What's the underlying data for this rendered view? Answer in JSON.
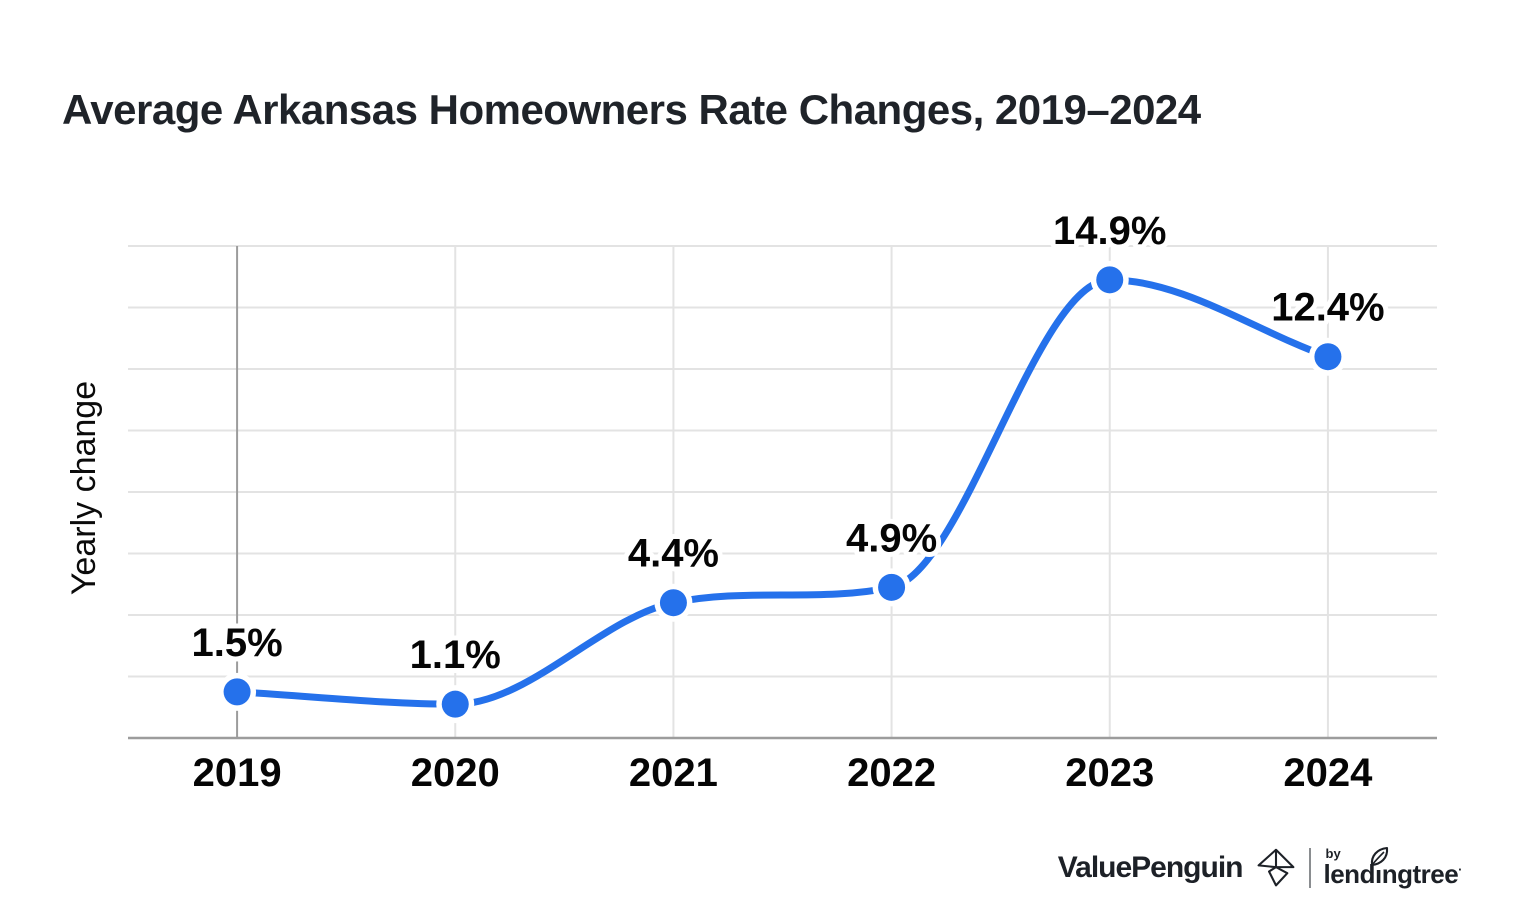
{
  "title": "Average Arkansas Homeowners Rate Changes, 2019–2024",
  "chart_data": {
    "type": "line",
    "title": "Average Arkansas Homeowners Rate Changes, 2019–2024",
    "xlabel": "",
    "ylabel": "Yearly change",
    "categories": [
      "2019",
      "2020",
      "2021",
      "2022",
      "2023",
      "2024"
    ],
    "values": [
      1.5,
      1.1,
      4.4,
      4.9,
      14.9,
      12.4
    ],
    "point_labels": [
      "1.5%",
      "1.1%",
      "4.4%",
      "4.9%",
      "14.9%",
      "12.4%"
    ],
    "ylim": [
      0,
      16
    ],
    "grid_step": 2,
    "grid": true,
    "legend_position": "none",
    "curve": "monotone",
    "colors": {
      "line": "#2571EB",
      "marker": "#2571EB",
      "marker_halo": "#FFFFFF",
      "gridline": "#E3E3E3",
      "axis": "#9C9C9C",
      "data_label": "#050505",
      "tick_label": "#050505",
      "axis_title": "#0B0B0B"
    }
  },
  "footer": {
    "brand_left": "ValuePenguin",
    "brand_by": "by",
    "brand_right": "lendingtree",
    "brand_right_pre": "lend",
    "brand_right_i": "i",
    "brand_right_post": "ngtree",
    "trademark": "·"
  }
}
